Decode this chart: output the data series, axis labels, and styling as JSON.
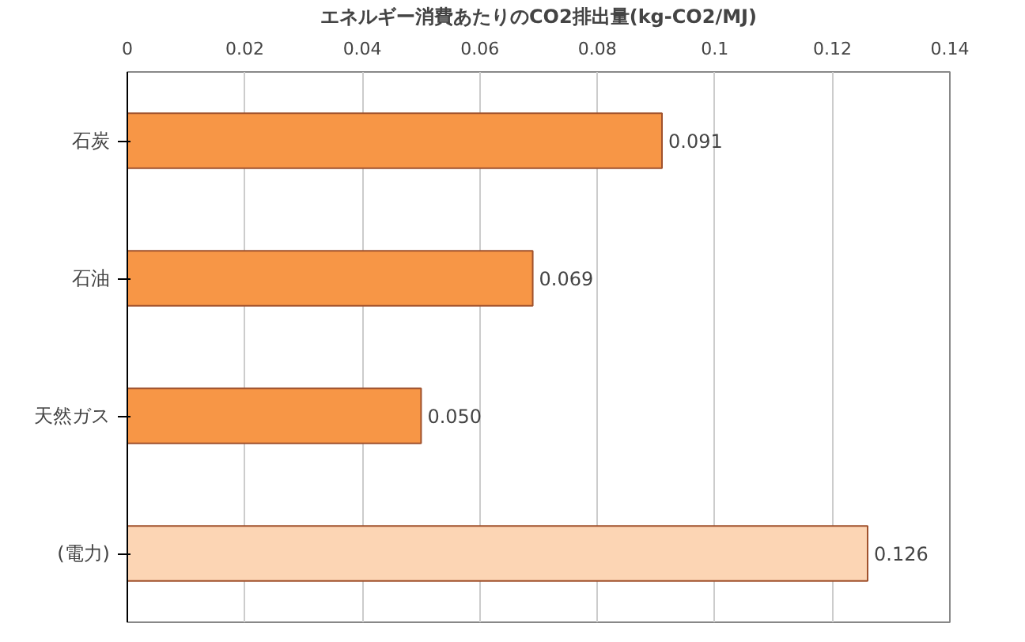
{
  "chart_data": {
    "type": "bar",
    "orientation": "horizontal",
    "xlabel": "エネルギー消費あたりのCO2排出量(kg-CO2/MJ)",
    "categories": [
      "石炭",
      "石油",
      "天然ガス",
      "(電力)"
    ],
    "values": [
      0.091,
      0.069,
      0.05,
      0.126
    ],
    "value_labels": [
      "0.091",
      "0.069",
      "0.050",
      "0.126"
    ],
    "colors": [
      "#f79646",
      "#f79646",
      "#f79646",
      "#fcd5b4"
    ],
    "xlim": [
      0,
      0.14
    ],
    "xticks": [
      0,
      0.02,
      0.04,
      0.06,
      0.08,
      0.1,
      0.12,
      0.14
    ],
    "grid": "x"
  }
}
